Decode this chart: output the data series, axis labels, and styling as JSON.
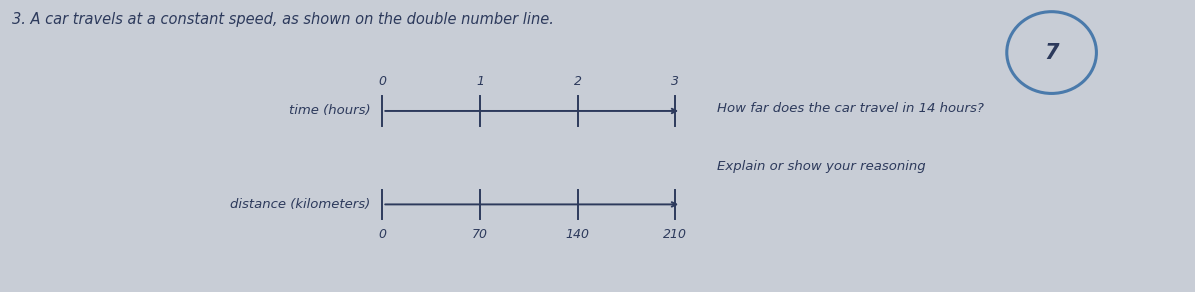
{
  "title": "3. A car travels at a constant speed, as shown on the double number line.",
  "question": "How far does the car travel in 14 hours?",
  "subtext": "Explain or show your reasoning",
  "problem_number": "7",
  "time_label": "time (hours)",
  "distance_label": "distance (kilometers)",
  "time_ticks": [
    0,
    1,
    2,
    3
  ],
  "distance_ticks": [
    0,
    70,
    140,
    210
  ],
  "background_color": "#c8cdd6",
  "text_color": "#2d3a5c",
  "line_color": "#2d3a5c",
  "circle_edge_color": "#4a7aab",
  "title_fontsize": 10.5,
  "label_fontsize": 9.5,
  "tick_fontsize": 9,
  "question_fontsize": 9.5
}
